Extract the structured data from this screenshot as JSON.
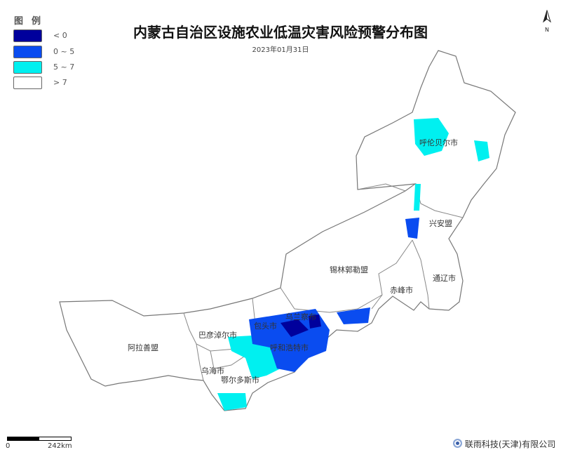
{
  "title": "内蒙古自治区设施农业低温灾害风险预警分布图",
  "date": "2023年01月31日",
  "legend": {
    "title": "图例",
    "items": [
      {
        "label": "< 0",
        "color": "#00009c"
      },
      {
        "label": "0 ~ 5",
        "color": "#0a4cf0"
      },
      {
        "label": "5 ~ 7",
        "color": "#00f0f0"
      },
      {
        "label": "> 7",
        "color": "#ffffff"
      }
    ]
  },
  "north_arrow": {
    "label": "N",
    "icon": "north-arrow-icon"
  },
  "regions": [
    "呼伦贝尔市",
    "兴安盟",
    "通辽市",
    "赤峰市",
    "锡林郭勒盟",
    "乌兰察布",
    "包头市",
    "呼和浩特市",
    "巴彦淖尔市",
    "阿拉善盟",
    "乌海市",
    "鄂尔多斯市"
  ],
  "scale_bar": {
    "start": "0",
    "end": "242km"
  },
  "company": "联雨科技(天津)有限公司"
}
